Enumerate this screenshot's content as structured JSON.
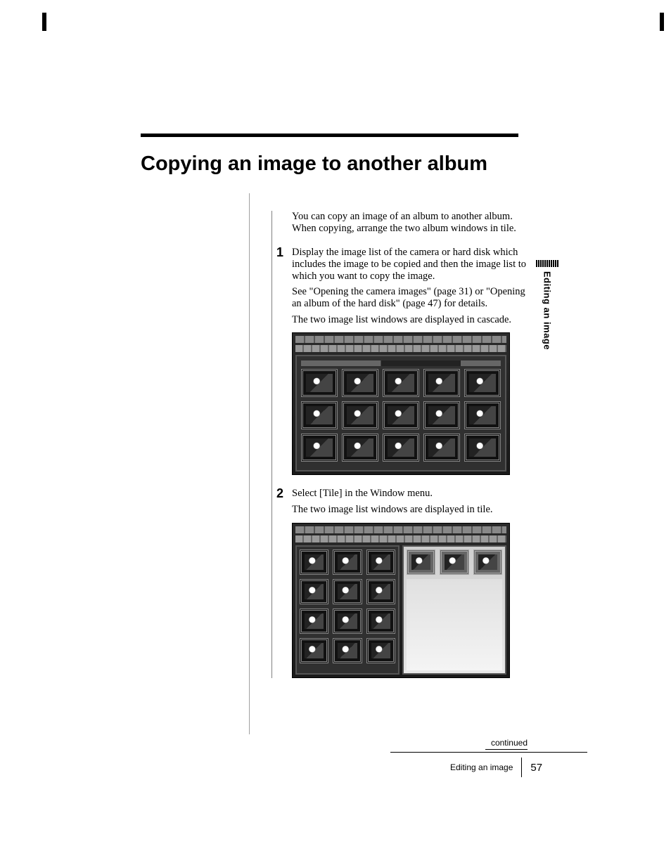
{
  "title": "Copying an image to another album",
  "intro": "You can copy an image of an album to another album. When copying, arrange the two album windows in tile.",
  "steps": [
    {
      "num": "1",
      "title": "Display the image list of the camera or hard disk which includes the image to be copied and then the image list to which you want to copy the image.",
      "note": "See \"Opening the camera images\" (page 31) or \"Opening an album of the hard disk\" (page 47) for details.",
      "result": "The two image list windows are displayed in cascade."
    },
    {
      "num": "2",
      "title": "Select [Tile] in the Window menu.",
      "result": "The two image list windows are displayed in tile."
    }
  ],
  "sideTab": "Editing an image",
  "continued": "continued",
  "footer": {
    "section": "Editing an image",
    "page": "57"
  },
  "screenshots": {
    "cascade": {
      "rows": 3,
      "cols": 5
    },
    "tile": {
      "left_rows": 4,
      "left_cols": 3,
      "right_top_cols": 3
    }
  },
  "colors": {
    "text": "#000000",
    "background": "#ffffff",
    "rule": "#000000",
    "divider": "#a0a0a0"
  }
}
